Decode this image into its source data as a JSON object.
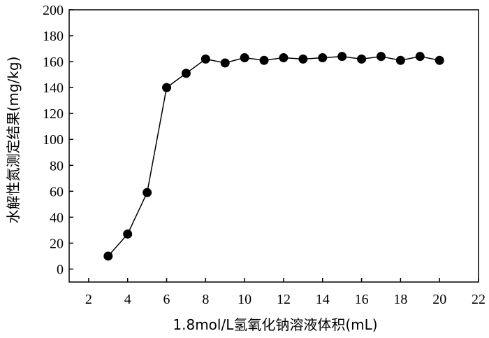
{
  "chart_data": {
    "type": "line",
    "title": "",
    "xlabel": "1.8mol/L氢氧化钠溶液体积(mL)",
    "ylabel": "水解性氮测定结果(mg/kg)",
    "xlim": [
      1,
      22
    ],
    "ylim": [
      -10,
      200
    ],
    "xticks": [
      2,
      4,
      6,
      8,
      10,
      12,
      14,
      16,
      18,
      20,
      22
    ],
    "yticks": [
      0,
      20,
      40,
      60,
      80,
      100,
      120,
      140,
      160,
      180,
      200
    ],
    "grid": false,
    "legend": "none",
    "series": [
      {
        "x": [
          3,
          4,
          5,
          6,
          7,
          8,
          9,
          10,
          11,
          12,
          13,
          14,
          15,
          16,
          17,
          18,
          19,
          20
        ],
        "y": [
          10,
          27,
          59,
          140,
          151,
          162,
          159,
          163,
          161,
          163,
          162,
          163,
          164,
          162,
          164,
          161,
          164,
          161
        ]
      }
    ],
    "line_color": "#000000",
    "marker_color": "#000000"
  }
}
